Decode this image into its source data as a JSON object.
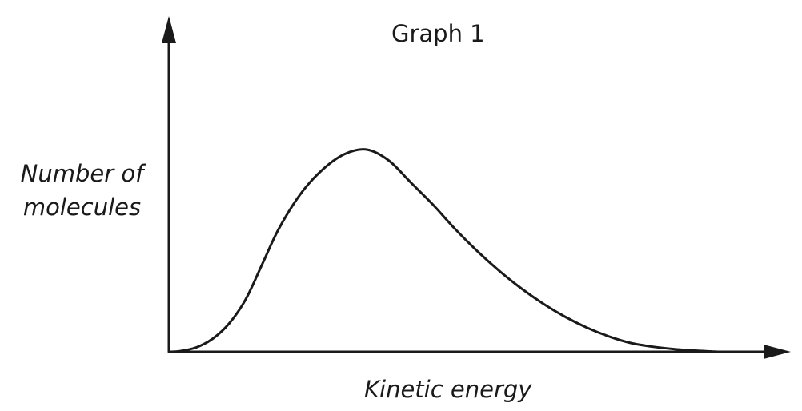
{
  "chart_data": {
    "type": "line",
    "title": "Graph 1",
    "xlabel": "Kinetic energy",
    "ylabel_lines": [
      "Number of",
      "molecules"
    ],
    "xlim": [
      0,
      100
    ],
    "ylim": [
      0,
      100
    ],
    "ticks": "none",
    "grid": false,
    "legend": "none",
    "series": [
      {
        "x": [
          0,
          2,
          5,
          8,
          11,
          14,
          17,
          20,
          24,
          28,
          32,
          36,
          40,
          44,
          48,
          52,
          56,
          60,
          64,
          68,
          72,
          76,
          80,
          84,
          88,
          92,
          96,
          100
        ],
        "y": [
          0,
          0.3,
          2,
          6,
          13,
          24,
          40,
          56,
          72,
          83,
          90,
          92,
          87,
          77,
          67,
          56,
          46,
          37,
          29,
          22,
          16,
          11,
          7,
          4,
          2.3,
          1.2,
          0.5,
          0
        ]
      }
    ],
    "colors": {
      "axis": "#1a1a1a",
      "curve": "#1a1a1a"
    }
  }
}
